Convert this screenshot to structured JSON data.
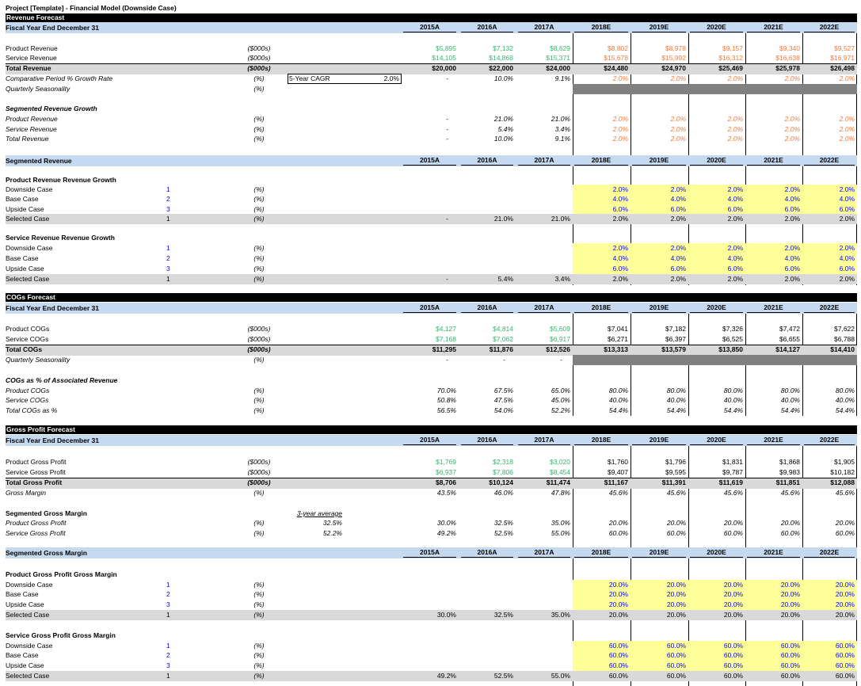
{
  "title": "Project [Template] - Financial Model (Downside Case)",
  "years": [
    "2015A",
    "2016A",
    "2017A",
    "2018E",
    "2019E",
    "2020E",
    "2021E",
    "2022E"
  ],
  "colors": {
    "hist_input": "#3cb371",
    "forecast_calc": "#f07a3c",
    "case_input": "#0000ff",
    "black": "#000000",
    "yellow": "#ffff99",
    "gray": "#d9d9d9",
    "dark_gray": "#808080",
    "header_blue": "#c5d9f1"
  },
  "cagr": {
    "label": "5-Year CAGR",
    "value": "2.0%"
  },
  "three_year_avg": {
    "label": "3-year average"
  },
  "rows": [
    {
      "type": "title",
      "label": "Project [Template] - Financial Model (Downside Case)"
    },
    {
      "type": "bar",
      "label": "Revenue Forecast"
    },
    {
      "type": "yearhdr",
      "label": "Fiscal Year End December 31"
    },
    {
      "type": "data",
      "label": "Product Revenue",
      "unit": "($000s)",
      "hist": "#3cb371",
      "fc": "#f07a3c",
      "vals": [
        "$5,895",
        "$7,132",
        "$8,629",
        "$8,802",
        "$8,978",
        "$9,157",
        "$9,340",
        "$9,527"
      ]
    },
    {
      "type": "data",
      "label": "Service Revenue",
      "unit": "($000s)",
      "hist": "#3cb371",
      "fc": "#f07a3c",
      "vals": [
        "$14,105",
        "$14,868",
        "$15,371",
        "$15,678",
        "$15,992",
        "$16,312",
        "$16,638",
        "$16,971"
      ]
    },
    {
      "type": "total",
      "label": "Total Revenue",
      "unit": "($000s)",
      "vals": [
        "$20,000",
        "$22,000",
        "$24,000",
        "$24,480",
        "$24,970",
        "$25,469",
        "$25,978",
        "$26,498"
      ]
    },
    {
      "type": "data",
      "italic": true,
      "label": "Comparative Period % Growth Rate",
      "unit": "(%)",
      "fc": "#f07a3c",
      "cagr": true,
      "vals": [
        "-",
        "10.0%",
        "9.1%",
        "2.0%",
        "2.0%",
        "2.0%",
        "2.0%",
        "2.0%"
      ]
    },
    {
      "type": "data",
      "italic": true,
      "dark": true,
      "label": "Quarterly Seasonality",
      "unit": "(%)",
      "vals": []
    },
    {
      "type": "subhead",
      "italic": true,
      "label": "Segmented Revenue Growth"
    },
    {
      "type": "data",
      "italic": true,
      "label": "Product Revenue",
      "unit": "(%)",
      "fc": "#f07a3c",
      "vals": [
        "-",
        "21.0%",
        "21.0%",
        "2.0%",
        "2.0%",
        "2.0%",
        "2.0%",
        "2.0%"
      ]
    },
    {
      "type": "data",
      "italic": true,
      "label": "Service Revenue",
      "unit": "(%)",
      "fc": "#f07a3c",
      "vals": [
        "-",
        "5.4%",
        "3.4%",
        "2.0%",
        "2.0%",
        "2.0%",
        "2.0%",
        "2.0%"
      ]
    },
    {
      "type": "data",
      "italic": true,
      "label": "Total Revenue",
      "unit": "(%)",
      "fc": "#f07a3c",
      "vals": [
        "-",
        "10.0%",
        "9.1%",
        "2.0%",
        "2.0%",
        "2.0%",
        "2.0%",
        "2.0%"
      ]
    },
    {
      "type": "yearhdr",
      "label": "Segmented Revenue"
    },
    {
      "type": "subhead",
      "label": "Product Revenue Revenue Growth"
    },
    {
      "type": "case",
      "label": "Downside Case",
      "num": "1",
      "unit": "(%)",
      "vals": [
        "",
        "",
        "",
        "2.0%",
        "2.0%",
        "2.0%",
        "2.0%",
        "2.0%"
      ]
    },
    {
      "type": "case",
      "label": "Base Case",
      "num": "2",
      "unit": "(%)",
      "vals": [
        "",
        "",
        "",
        "4.0%",
        "4.0%",
        "4.0%",
        "4.0%",
        "4.0%"
      ]
    },
    {
      "type": "case",
      "label": "Upside Case",
      "num": "3",
      "unit": "(%)",
      "vals": [
        "",
        "",
        "",
        "6.0%",
        "6.0%",
        "6.0%",
        "6.0%",
        "6.0%"
      ]
    },
    {
      "type": "selected",
      "label": "Selected Case",
      "num": "1",
      "unit": "(%)",
      "vals": [
        "-",
        "21.0%",
        "21.0%",
        "2.0%",
        "2.0%",
        "2.0%",
        "2.0%",
        "2.0%"
      ]
    },
    {
      "type": "subhead",
      "label": "Service Revenue Revenue Growth"
    },
    {
      "type": "case",
      "label": "Downside Case",
      "num": "1",
      "unit": "(%)",
      "vals": [
        "",
        "",
        "",
        "2.0%",
        "2.0%",
        "2.0%",
        "2.0%",
        "2.0%"
      ]
    },
    {
      "type": "case",
      "label": "Base Case",
      "num": "2",
      "unit": "(%)",
      "vals": [
        "",
        "",
        "",
        "4.0%",
        "4.0%",
        "4.0%",
        "4.0%",
        "4.0%"
      ]
    },
    {
      "type": "case",
      "label": "Upside Case",
      "num": "3",
      "unit": "(%)",
      "vals": [
        "",
        "",
        "",
        "6.0%",
        "6.0%",
        "6.0%",
        "6.0%",
        "6.0%"
      ]
    },
    {
      "type": "selected",
      "label": "Selected Case",
      "num": "1",
      "unit": "(%)",
      "vals": [
        "-",
        "5.4%",
        "3.4%",
        "2.0%",
        "2.0%",
        "2.0%",
        "2.0%",
        "2.0%"
      ]
    },
    {
      "type": "bar",
      "label": "COGs Forecast"
    },
    {
      "type": "yearhdr",
      "label": "Fiscal Year End December 31"
    },
    {
      "type": "data",
      "label": "Product COGs",
      "unit": "($000s)",
      "hist": "#3cb371",
      "vals": [
        "$4,127",
        "$4,814",
        "$5,609",
        "$7,041",
        "$7,182",
        "$7,326",
        "$7,472",
        "$7,622"
      ]
    },
    {
      "type": "data",
      "label": "Service COGs",
      "unit": "($000s)",
      "hist": "#3cb371",
      "vals": [
        "$7,168",
        "$7,062",
        "$6,917",
        "$6,271",
        "$6,397",
        "$6,525",
        "$6,655",
        "$6,788"
      ]
    },
    {
      "type": "total",
      "label": "Total COGs",
      "unit": "($000s)",
      "vals": [
        "$11,295",
        "$11,876",
        "$12,526",
        "$13,313",
        "$13,579",
        "$13,850",
        "$14,127",
        "$14,410"
      ]
    },
    {
      "type": "data",
      "italic": true,
      "dark": true,
      "label": "Quarterly Seasonality",
      "unit": "(%)",
      "vals": [
        "-",
        "-",
        "-"
      ]
    },
    {
      "type": "subhead",
      "italic": true,
      "label": "COGs as % of Associated Revenue"
    },
    {
      "type": "data",
      "italic": true,
      "label": "Product COGs",
      "unit": "(%)",
      "vals": [
        "70.0%",
        "67.5%",
        "65.0%",
        "80.0%",
        "80.0%",
        "80.0%",
        "80.0%",
        "80.0%"
      ]
    },
    {
      "type": "data",
      "italic": true,
      "label": "Service COGs",
      "unit": "(%)",
      "vals": [
        "50.8%",
        "47.5%",
        "45.0%",
        "40.0%",
        "40.0%",
        "40.0%",
        "40.0%",
        "40.0%"
      ]
    },
    {
      "type": "data",
      "italic": true,
      "label": "Total COGs as %",
      "unit": "(%)",
      "vals": [
        "56.5%",
        "54.0%",
        "52.2%",
        "54.4%",
        "54.4%",
        "54.4%",
        "54.4%",
        "54.4%"
      ]
    },
    {
      "type": "bar",
      "label": "Gross Profit Forecast"
    },
    {
      "type": "yearhdr",
      "label": "Fiscal Year End December 31"
    },
    {
      "type": "data",
      "label": "Product Gross Profit",
      "unit": "($000s)",
      "hist": "#3cb371",
      "vals": [
        "$1,769",
        "$2,318",
        "$3,020",
        "$1,760",
        "$1,796",
        "$1,831",
        "$1,868",
        "$1,905"
      ]
    },
    {
      "type": "data",
      "label": "Service Gross Profit",
      "unit": "($000s)",
      "hist": "#3cb371",
      "vals": [
        "$6,937",
        "$7,806",
        "$8,454",
        "$9,407",
        "$9,595",
        "$9,787",
        "$9,983",
        "$10,182"
      ]
    },
    {
      "type": "total",
      "label": "Total Gross Profit",
      "unit": "($000s)",
      "vals": [
        "$8,706",
        "$10,124",
        "$11,474",
        "$11,167",
        "$11,391",
        "$11,619",
        "$11,851",
        "$12,088"
      ]
    },
    {
      "type": "data",
      "italic": true,
      "label": "Gross Margin",
      "unit": "(%)",
      "vals": [
        "43.5%",
        "46.0%",
        "47.8%",
        "45.6%",
        "45.6%",
        "45.6%",
        "45.6%",
        "45.6%"
      ]
    },
    {
      "type": "subhead",
      "label": "Segmented Gross Margin",
      "avg_header": true
    },
    {
      "type": "data",
      "italic": true,
      "label": "Product Gross Profit",
      "unit": "(%)",
      "avg": "32.5%",
      "vals": [
        "30.0%",
        "32.5%",
        "35.0%",
        "20.0%",
        "20.0%",
        "20.0%",
        "20.0%",
        "20.0%"
      ]
    },
    {
      "type": "data",
      "italic": true,
      "label": "Service Gross Profit",
      "unit": "(%)",
      "avg": "52.2%",
      "vals": [
        "49.2%",
        "52.5%",
        "55.0%",
        "60.0%",
        "60.0%",
        "60.0%",
        "60.0%",
        "60.0%"
      ]
    },
    {
      "type": "yearhdr",
      "label": "Segmented Gross Margin"
    },
    {
      "type": "subhead",
      "label": "Product Gross Profit Gross Margin"
    },
    {
      "type": "case",
      "label": "Downside Case",
      "num": "1",
      "unit": "(%)",
      "vals": [
        "",
        "",
        "",
        "20.0%",
        "20.0%",
        "20.0%",
        "20.0%",
        "20.0%"
      ]
    },
    {
      "type": "case",
      "label": "Base Case",
      "num": "2",
      "unit": "(%)",
      "vals": [
        "",
        "",
        "",
        "20.0%",
        "20.0%",
        "20.0%",
        "20.0%",
        "20.0%"
      ]
    },
    {
      "type": "case",
      "label": "Upside Case",
      "num": "3",
      "unit": "(%)",
      "vals": [
        "",
        "",
        "",
        "20.0%",
        "20.0%",
        "20.0%",
        "20.0%",
        "20.0%"
      ]
    },
    {
      "type": "selected",
      "label": "Selected Case",
      "num": "1",
      "unit": "(%)",
      "vals": [
        "30.0%",
        "32.5%",
        "35.0%",
        "20.0%",
        "20.0%",
        "20.0%",
        "20.0%",
        "20.0%"
      ]
    },
    {
      "type": "subhead",
      "label": "Service Gross Profit Gross Margin"
    },
    {
      "type": "case",
      "label": "Downside Case",
      "num": "1",
      "unit": "(%)",
      "vals": [
        "",
        "",
        "",
        "60.0%",
        "60.0%",
        "60.0%",
        "60.0%",
        "60.0%"
      ]
    },
    {
      "type": "case",
      "label": "Base Case",
      "num": "2",
      "unit": "(%)",
      "vals": [
        "",
        "",
        "",
        "60.0%",
        "60.0%",
        "60.0%",
        "60.0%",
        "60.0%"
      ]
    },
    {
      "type": "case",
      "label": "Upside Case",
      "num": "3",
      "unit": "(%)",
      "vals": [
        "",
        "",
        "",
        "60.0%",
        "60.0%",
        "60.0%",
        "60.0%",
        "60.0%"
      ]
    },
    {
      "type": "selected",
      "label": "Selected Case",
      "num": "1",
      "unit": "(%)",
      "vals": [
        "49.2%",
        "52.5%",
        "55.0%",
        "60.0%",
        "60.0%",
        "60.0%",
        "60.0%",
        "60.0%"
      ]
    }
  ]
}
